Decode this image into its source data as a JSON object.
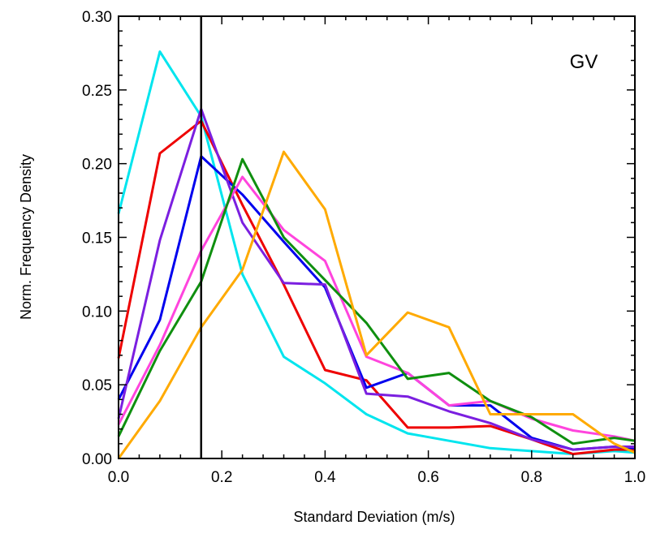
{
  "chart_data": {
    "type": "line",
    "title": "",
    "annotation": "GV",
    "xlabel": "Standard Deviation (m/s)",
    "ylabel": "Norm. Frequency Density",
    "xlim": [
      0.0,
      1.0
    ],
    "ylim": [
      0.0,
      0.3
    ],
    "x_ticks": [
      "0.0",
      "0.2",
      "0.4",
      "0.6",
      "0.8",
      "1.0"
    ],
    "y_ticks": [
      "0.00",
      "0.05",
      "0.10",
      "0.15",
      "0.20",
      "0.25",
      "0.30"
    ],
    "x_tick_values": [
      0.0,
      0.2,
      0.4,
      0.6,
      0.8,
      1.0
    ],
    "y_tick_values": [
      0.0,
      0.05,
      0.1,
      0.15,
      0.2,
      0.25,
      0.3
    ],
    "vertical_line_x": 0.16,
    "grid": false,
    "x": [
      0.0,
      0.08,
      0.16,
      0.24,
      0.32,
      0.4,
      0.48,
      0.56,
      0.64,
      0.72,
      0.8,
      0.88,
      0.96,
      1.0
    ],
    "series": [
      {
        "color": "#00e5ee",
        "values": [
          0.166,
          0.276,
          0.232,
          0.125,
          0.069,
          0.051,
          0.03,
          0.017,
          0.012,
          0.007,
          0.005,
          0.003,
          0.005,
          0.004
        ]
      },
      {
        "color": "#ee0000",
        "values": [
          0.068,
          0.207,
          0.229,
          0.172,
          0.118,
          0.06,
          0.053,
          0.021,
          0.021,
          0.022,
          0.013,
          0.003,
          0.006,
          0.006
        ]
      },
      {
        "color": "#0000ee",
        "values": [
          0.04,
          0.094,
          0.205,
          0.179,
          0.147,
          0.116,
          0.048,
          0.058,
          0.036,
          0.036,
          0.014,
          0.006,
          0.008,
          0.007
        ]
      },
      {
        "color": "#7b1fe0",
        "values": [
          0.027,
          0.148,
          0.237,
          0.16,
          0.119,
          0.118,
          0.044,
          0.042,
          0.032,
          0.024,
          0.013,
          0.006,
          0.008,
          0.008
        ]
      },
      {
        "color": "#ff44dd",
        "values": [
          0.023,
          0.077,
          0.141,
          0.191,
          0.155,
          0.134,
          0.069,
          0.058,
          0.036,
          0.039,
          0.027,
          0.019,
          0.015,
          0.012
        ]
      },
      {
        "color": "#0f8f0f",
        "values": [
          0.015,
          0.073,
          0.12,
          0.203,
          0.15,
          0.121,
          0.092,
          0.054,
          0.058,
          0.039,
          0.028,
          0.01,
          0.014,
          0.012
        ]
      },
      {
        "color": "#ffaa00",
        "values": [
          0.0,
          0.039,
          0.089,
          0.128,
          0.208,
          0.169,
          0.07,
          0.099,
          0.089,
          0.03,
          0.03,
          0.03,
          0.01,
          0.004
        ]
      }
    ]
  }
}
